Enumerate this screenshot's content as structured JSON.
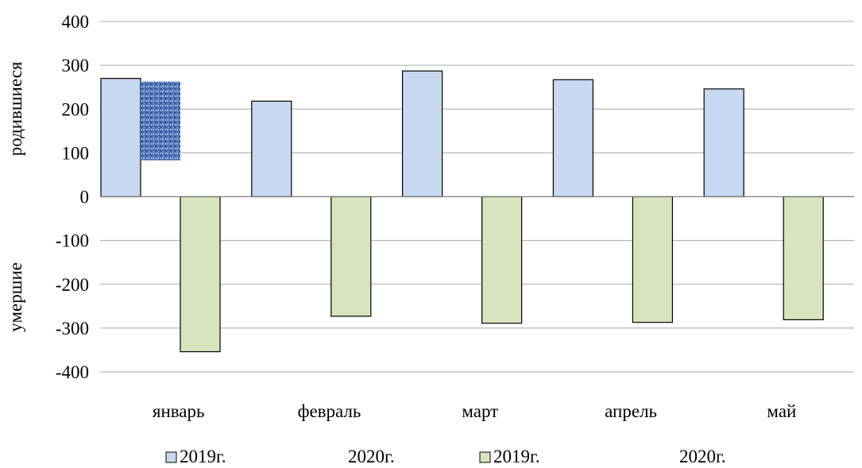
{
  "chart_data": {
    "type": "bar",
    "categories": [
      "январь",
      "февраль",
      "март",
      "апрель",
      "май"
    ],
    "series": [
      {
        "name": "2019г.",
        "group": "родившиеся",
        "color": "#c6d9f1",
        "values": [
          270,
          218,
          287,
          267,
          246
        ]
      },
      {
        "name": "2020г.",
        "group": "родившиеся",
        "color": "#4f74b8",
        "values": [
          263,
          null,
          null,
          null,
          null
        ],
        "pattern": true
      },
      {
        "name": "2019г.",
        "group": "умершие",
        "color": "#d7e4bd",
        "values": [
          -354,
          -273,
          -289,
          -287,
          -281
        ]
      },
      {
        "name": "2020г.",
        "group": "умершие",
        "color": "#d7e4bd",
        "values": [
          null,
          null,
          null,
          null,
          null
        ]
      }
    ],
    "title": "",
    "ylabel_top": "родившиеся",
    "ylabel_bottom": "умершие",
    "ylim": [
      -400,
      400
    ],
    "yticks": [
      400,
      300,
      200,
      100,
      0,
      -100,
      -200,
      -300,
      -400
    ],
    "ytick_labels": [
      "400",
      "300",
      "200",
      "100",
      "0",
      "-100",
      "-200",
      "-300",
      "-400"
    ],
    "grid": true,
    "legend_position": "bottom",
    "legend": [
      "2019г.",
      "2020г.",
      "2019г.",
      "2020г."
    ]
  }
}
